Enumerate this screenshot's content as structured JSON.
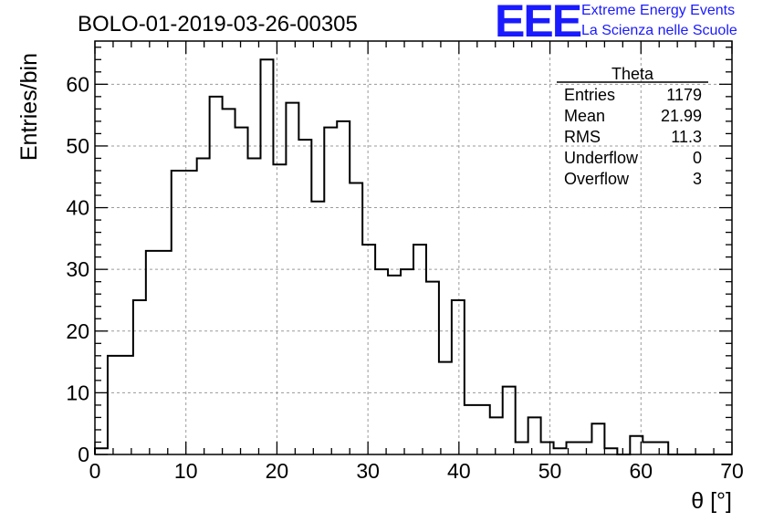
{
  "title": "BOLO-01-2019-03-26-00305",
  "logo": {
    "mark": "EEE",
    "line1": "Extreme Energy Events",
    "line2": "La Scienza nelle Scuole"
  },
  "stats": {
    "name": "Theta",
    "rows": [
      {
        "label": "Entries",
        "value": "1179"
      },
      {
        "label": "Mean",
        "value": "21.99"
      },
      {
        "label": "RMS",
        "value": "11.3"
      },
      {
        "label": "Underflow",
        "value": "0"
      },
      {
        "label": "Overflow",
        "value": "3"
      }
    ]
  },
  "chart_data": {
    "type": "histogram",
    "title": "BOLO-01-2019-03-26-00305",
    "xlabel": "θ [°]",
    "ylabel": "Entries/bin",
    "xlim": [
      0,
      70
    ],
    "ylim": [
      0,
      67
    ],
    "bin_width": 1.4,
    "x_ticks": [
      0,
      10,
      20,
      30,
      40,
      50,
      60,
      70
    ],
    "y_ticks": [
      0,
      10,
      20,
      30,
      40,
      50,
      60
    ],
    "grid": true,
    "legend": "top-right",
    "values": [
      1,
      16,
      16,
      25,
      33,
      33,
      46,
      46,
      48,
      58,
      56,
      53,
      48,
      64,
      47,
      57,
      51,
      41,
      53,
      54,
      44,
      34,
      30,
      29,
      30,
      34,
      28,
      15,
      25,
      8,
      8,
      6,
      11,
      2,
      6,
      2,
      1,
      2,
      2,
      5,
      1,
      0,
      3,
      2,
      2,
      0,
      0,
      0,
      0,
      0
    ]
  }
}
